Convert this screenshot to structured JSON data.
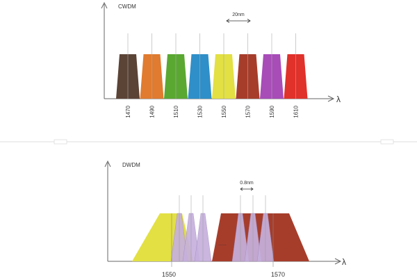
{
  "cwdm": {
    "title": "CWDM",
    "axis_label": "λ",
    "spacing_label": "20nm",
    "channels": [
      {
        "wavelength": "1470",
        "color": "#5b4336"
      },
      {
        "wavelength": "1490",
        "color": "#e07b2f"
      },
      {
        "wavelength": "1510",
        "color": "#5aa832"
      },
      {
        "wavelength": "1530",
        "color": "#2f8fc8"
      },
      {
        "wavelength": "1550",
        "color": "#e2e043"
      },
      {
        "wavelength": "1570",
        "color": "#a63d2b"
      },
      {
        "wavelength": "1590",
        "color": "#a84cb8"
      },
      {
        "wavelength": "1610",
        "color": "#e0312b"
      }
    ]
  },
  "dwdm": {
    "title": "DWDM",
    "axis_label": "λ",
    "spacing_label": "0.8nm",
    "ellipsis": "......",
    "band_start_label": "1550",
    "band_end_label": "1570",
    "colors": {
      "band_1550": "#e2e043",
      "band_1570": "#a63d2b",
      "dense_channel": "#c6b0dd"
    }
  },
  "colors": {
    "axis": "#666666",
    "separator": "#dddddd",
    "marker": "#aaaaaa"
  }
}
